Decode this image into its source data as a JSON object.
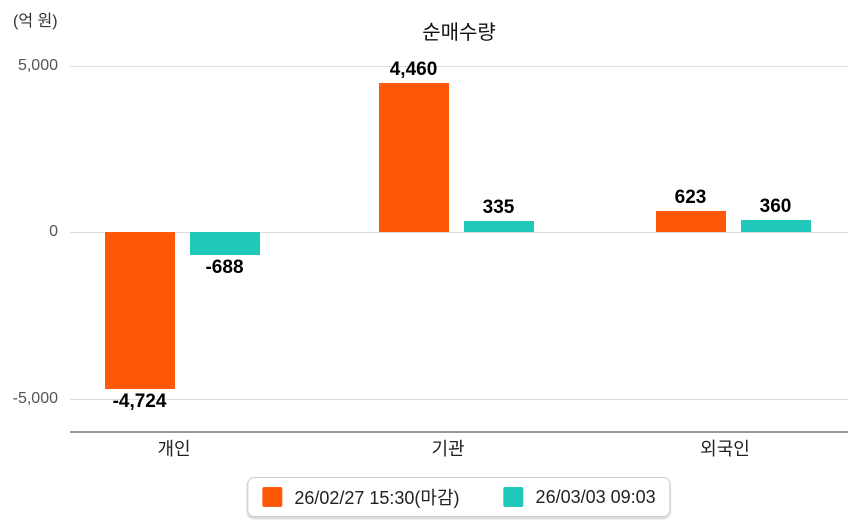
{
  "chart_data": {
    "type": "bar",
    "title": "순매수량",
    "unit_label": "(억 원)",
    "categories": [
      "개인",
      "기관",
      "외국인"
    ],
    "series": [
      {
        "name": "26/02/27 15:30(마감)",
        "color": "#ff5808",
        "values": [
          -4724,
          4460,
          623
        ]
      },
      {
        "name": "26/03/03 09:03",
        "color": "#1fc8b8",
        "values": [
          -688,
          335,
          360
        ]
      }
    ],
    "value_labels": [
      [
        "-4,724",
        "4,460",
        "623"
      ],
      [
        "-688",
        "335",
        "360"
      ]
    ],
    "y_ticks": [
      {
        "value": 5000,
        "label": "5,000"
      },
      {
        "value": 0,
        "label": "0"
      },
      {
        "value": -5000,
        "label": "-5,000"
      }
    ],
    "ylim": [
      -5000,
      5000
    ],
    "grid": true,
    "legend_position": "bottom"
  },
  "colors": {
    "series1": "#ff5808",
    "series2": "#1fc8b8",
    "gridline": "#dddddd",
    "axis": "#999999"
  }
}
